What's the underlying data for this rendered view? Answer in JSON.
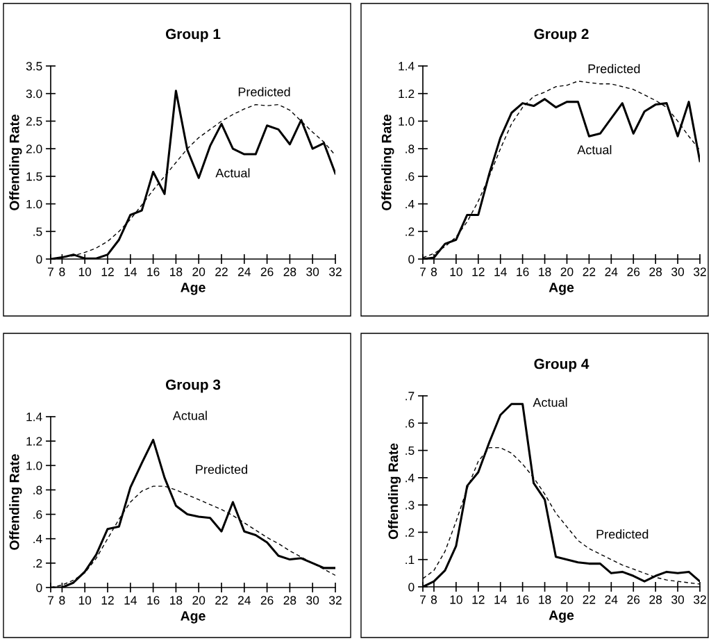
{
  "chart_data": [
    {
      "type": "line",
      "title": "Group 1",
      "xlabel": "Age",
      "ylabel": "Offending Rate",
      "x": [
        7,
        8,
        9,
        10,
        11,
        12,
        13,
        14,
        15,
        16,
        17,
        18,
        19,
        20,
        21,
        22,
        23,
        24,
        25,
        26,
        27,
        28,
        29,
        30,
        31,
        32
      ],
      "series": [
        {
          "color": "#000000",
          "line_style": "solid",
          "values": [
            0,
            0.03,
            0.08,
            0.01,
            0.01,
            0.08,
            0.35,
            0.8,
            0.88,
            1.58,
            1.18,
            3.05,
            1.98,
            1.47,
            2.05,
            2.45,
            2.0,
            1.9,
            1.9,
            2.42,
            2.35,
            2.08,
            2.52,
            2.0,
            2.1,
            1.55
          ]
        },
        {
          "color": "#000000",
          "line_style": "dashed",
          "values": [
            0,
            0.03,
            0.06,
            0.12,
            0.2,
            0.32,
            0.5,
            0.72,
            0.98,
            1.25,
            1.5,
            1.75,
            2.0,
            2.2,
            2.35,
            2.5,
            2.62,
            2.72,
            2.8,
            2.78,
            2.8,
            2.7,
            2.5,
            2.3,
            2.12,
            1.88
          ]
        }
      ],
      "annotations": [
        "Actual",
        "Predicted"
      ],
      "xlim": [
        7,
        32
      ],
      "xticks": [
        7,
        8,
        10,
        12,
        14,
        16,
        18,
        20,
        22,
        24,
        26,
        28,
        30,
        32
      ],
      "ylim": [
        0,
        3.5
      ],
      "yticks": [
        0,
        {
          "value": 0.5,
          "label": ".5"
        },
        {
          "value": 1.0,
          "label": "1.0"
        },
        {
          "value": 1.5,
          "label": "1.5"
        },
        {
          "value": 2.0,
          "label": "2.0"
        },
        {
          "value": 2.5,
          "label": "2.5"
        },
        {
          "value": 3.0,
          "label": "3.0"
        },
        {
          "value": 3.5,
          "label": "3.5"
        }
      ],
      "grid": false,
      "marker": "none"
    },
    {
      "type": "line",
      "title": "Group 2",
      "xlabel": "Age",
      "ylabel": "Offending Rate",
      "x": [
        7,
        8,
        9,
        10,
        11,
        12,
        13,
        14,
        15,
        16,
        17,
        18,
        19,
        20,
        21,
        22,
        23,
        24,
        25,
        26,
        27,
        28,
        29,
        30,
        31,
        32
      ],
      "series": [
        {
          "color": "#000000",
          "line_style": "solid",
          "values": [
            0,
            0.01,
            0.11,
            0.14,
            0.32,
            0.32,
            0.62,
            0.88,
            1.06,
            1.13,
            1.11,
            1.16,
            1.1,
            1.14,
            1.14,
            0.89,
            0.91,
            1.02,
            1.13,
            0.91,
            1.07,
            1.12,
            1.13,
            0.89,
            1.14,
            0.71
          ]
        },
        {
          "color": "#000000",
          "line_style": "dashed",
          "values": [
            0.01,
            0.04,
            0.09,
            0.16,
            0.27,
            0.42,
            0.6,
            0.8,
            0.98,
            1.1,
            1.18,
            1.21,
            1.25,
            1.26,
            1.29,
            1.28,
            1.27,
            1.27,
            1.25,
            1.23,
            1.19,
            1.15,
            1.1,
            1.0,
            0.89,
            0.79
          ]
        }
      ],
      "annotations": [
        "Actual",
        "Predicted"
      ],
      "xlim": [
        7,
        32
      ],
      "xticks": [
        7,
        8,
        10,
        12,
        14,
        16,
        18,
        20,
        22,
        24,
        26,
        28,
        30,
        32
      ],
      "ylim": [
        0,
        1.4
      ],
      "yticks": [
        0,
        {
          "value": 0.2,
          "label": ".2"
        },
        {
          "value": 0.4,
          "label": ".4"
        },
        {
          "value": 0.6,
          "label": ".6"
        },
        {
          "value": 0.8,
          "label": ".8"
        },
        {
          "value": 1.0,
          "label": "1.0"
        },
        {
          "value": 1.2,
          "label": "1.2"
        },
        {
          "value": 1.4,
          "label": "1.4"
        }
      ],
      "grid": false,
      "marker": "none"
    },
    {
      "type": "line",
      "title": "Group 3",
      "xlabel": "Age",
      "ylabel": "Offending Rate",
      "x": [
        7,
        8,
        9,
        10,
        11,
        12,
        13,
        14,
        15,
        16,
        17,
        18,
        19,
        20,
        21,
        22,
        23,
        24,
        25,
        26,
        27,
        28,
        29,
        30,
        31,
        32
      ],
      "series": [
        {
          "color": "#000000",
          "line_style": "solid",
          "values": [
            0,
            0,
            0.04,
            0.13,
            0.27,
            0.48,
            0.5,
            0.82,
            1.02,
            1.21,
            0.9,
            0.67,
            0.6,
            0.58,
            0.57,
            0.46,
            0.7,
            0.46,
            0.43,
            0.37,
            0.26,
            0.23,
            0.24,
            0.2,
            0.16,
            0.16
          ]
        },
        {
          "color": "#000000",
          "line_style": "dashed",
          "values": [
            0,
            0.02,
            0.06,
            0.12,
            0.24,
            0.4,
            0.56,
            0.7,
            0.79,
            0.83,
            0.83,
            0.8,
            0.76,
            0.72,
            0.68,
            0.64,
            0.59,
            0.53,
            0.47,
            0.41,
            0.36,
            0.3,
            0.25,
            0.2,
            0.15,
            0.1
          ]
        }
      ],
      "annotations": [
        "Actual",
        "Predicted"
      ],
      "xlim": [
        7,
        32
      ],
      "xticks": [
        7,
        8,
        10,
        12,
        14,
        16,
        18,
        20,
        22,
        24,
        26,
        28,
        30,
        32
      ],
      "ylim": [
        0,
        1.4
      ],
      "yticks": [
        0,
        {
          "value": 0.2,
          "label": ".2"
        },
        {
          "value": 0.4,
          "label": ".4"
        },
        {
          "value": 0.6,
          "label": ".6"
        },
        {
          "value": 0.8,
          "label": ".8"
        },
        {
          "value": 1.0,
          "label": "1.0"
        },
        {
          "value": 1.2,
          "label": "1.2"
        },
        {
          "value": 1.4,
          "label": "1.4"
        }
      ],
      "grid": false,
      "marker": "none"
    },
    {
      "type": "line",
      "title": "Group 4",
      "xlabel": "Age",
      "ylabel": "Offending Rate",
      "x": [
        7,
        8,
        9,
        10,
        11,
        12,
        13,
        14,
        15,
        16,
        17,
        18,
        19,
        20,
        21,
        22,
        23,
        24,
        25,
        26,
        27,
        28,
        29,
        30,
        31,
        32
      ],
      "series": [
        {
          "color": "#000000",
          "line_style": "solid",
          "values": [
            0,
            0.02,
            0.06,
            0.15,
            0.37,
            0.42,
            0.53,
            0.63,
            0.67,
            0.67,
            0.38,
            0.32,
            0.11,
            0.1,
            0.09,
            0.085,
            0.085,
            0.05,
            0.055,
            0.04,
            0.02,
            0.04,
            0.055,
            0.05,
            0.055,
            0.02
          ]
        },
        {
          "color": "#000000",
          "line_style": "dashed",
          "values": [
            0.03,
            0.06,
            0.13,
            0.24,
            0.36,
            0.46,
            0.51,
            0.51,
            0.49,
            0.45,
            0.4,
            0.34,
            0.27,
            0.22,
            0.17,
            0.14,
            0.12,
            0.1,
            0.08,
            0.065,
            0.05,
            0.035,
            0.025,
            0.02,
            0.015,
            0.01
          ]
        }
      ],
      "annotations": [
        "Actual",
        "Predicted"
      ],
      "xlim": [
        7,
        32
      ],
      "xticks": [
        7,
        8,
        10,
        12,
        14,
        16,
        18,
        20,
        22,
        24,
        26,
        28,
        30,
        32
      ],
      "ylim": [
        0,
        0.7
      ],
      "yticks": [
        0,
        {
          "value": 0.1,
          "label": ".1"
        },
        {
          "value": 0.2,
          "label": ".2"
        },
        {
          "value": 0.3,
          "label": ".3"
        },
        {
          "value": 0.4,
          "label": ".4"
        },
        {
          "value": 0.5,
          "label": ".5"
        },
        {
          "value": 0.6,
          "label": ".6"
        },
        {
          "value": 0.7,
          "label": ".7"
        }
      ],
      "grid": false,
      "marker": "none"
    }
  ]
}
